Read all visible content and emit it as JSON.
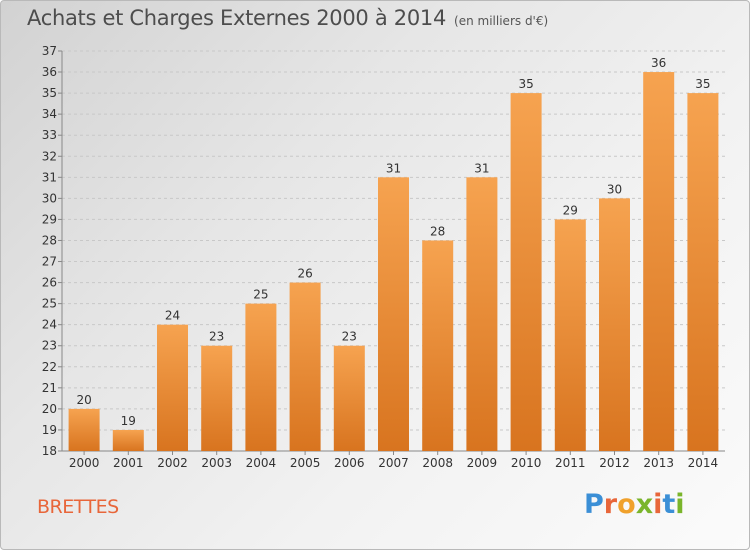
{
  "title": "Achats et Charges Externes 2000 à 2014",
  "unit": "(en milliers d'€)",
  "place": "BRETTES",
  "logo": {
    "letters": [
      "P",
      "r",
      "o",
      "x",
      "i",
      "t",
      "i"
    ],
    "colors": [
      "#3b8fd6",
      "#e8663a",
      "#f0a12c",
      "#7ab52b",
      "#e8663a",
      "#3b8fd6",
      "#7ab52b"
    ]
  },
  "colors": {
    "bar_top": "#f6a350",
    "bar_bottom": "#d8741f",
    "title": "#4d4d4d",
    "place": "#e8663a"
  },
  "chart_data": {
    "type": "bar",
    "categories": [
      "2000",
      "2001",
      "2002",
      "2003",
      "2004",
      "2005",
      "2006",
      "2007",
      "2008",
      "2009",
      "2010",
      "2011",
      "2012",
      "2013",
      "2014"
    ],
    "values": [
      20,
      19,
      24,
      23,
      25,
      26,
      23,
      31,
      28,
      31,
      35,
      29,
      30,
      36,
      35
    ],
    "ylim": [
      18,
      37
    ],
    "yticks": [
      18,
      19,
      20,
      21,
      22,
      23,
      24,
      25,
      26,
      27,
      28,
      29,
      30,
      31,
      32,
      33,
      34,
      35,
      36,
      37
    ],
    "grid": true,
    "xlabel": "",
    "ylabel": ""
  }
}
